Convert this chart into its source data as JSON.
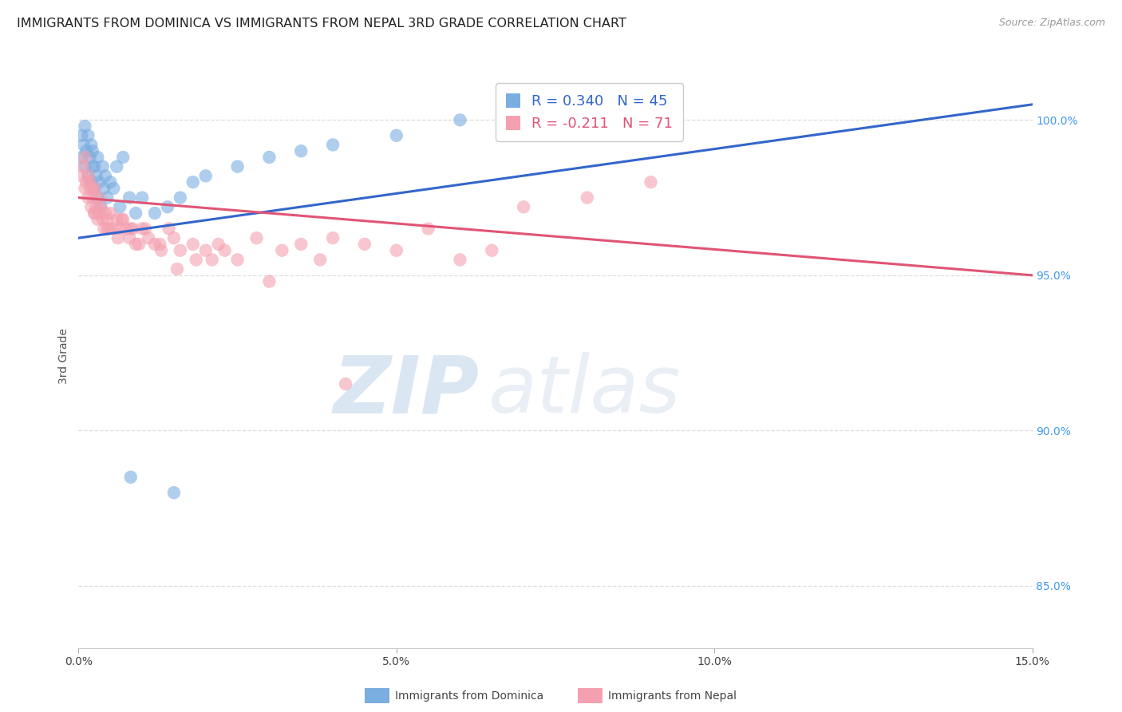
{
  "title": "IMMIGRANTS FROM DOMINICA VS IMMIGRANTS FROM NEPAL 3RD GRADE CORRELATION CHART",
  "source": "Source: ZipAtlas.com",
  "ylabel": "3rd Grade",
  "xlim": [
    0.0,
    15.0
  ],
  "ylim": [
    83.0,
    101.8
  ],
  "xticks": [
    0.0,
    5.0,
    10.0,
    15.0
  ],
  "xtick_labels": [
    "0.0%",
    "5.0%",
    "10.0%",
    "15.0%"
  ],
  "ytick_labels_right": [
    "85.0%",
    "90.0%",
    "95.0%",
    "100.0%"
  ],
  "yticks_right": [
    85.0,
    90.0,
    95.0,
    100.0
  ],
  "grid_color": "#dddddd",
  "background_color": "#ffffff",
  "dominica_color": "#7aade0",
  "nepal_color": "#f4a0b0",
  "dominica_line_color": "#3366cc",
  "nepal_line_color": "#e05575",
  "legend_R_dominica": "0.340",
  "legend_N_dominica": "45",
  "legend_R_nepal": "-0.211",
  "legend_N_nepal": "71",
  "watermark_zip": "ZIP",
  "watermark_atlas": "atlas",
  "dominica_x": [
    0.05,
    0.05,
    0.08,
    0.1,
    0.1,
    0.12,
    0.15,
    0.15,
    0.18,
    0.2,
    0.2,
    0.22,
    0.22,
    0.25,
    0.25,
    0.28,
    0.3,
    0.3,
    0.32,
    0.35,
    0.38,
    0.4,
    0.42,
    0.45,
    0.5,
    0.55,
    0.6,
    0.65,
    0.7,
    0.8,
    0.9,
    1.0,
    1.2,
    1.4,
    1.6,
    1.8,
    2.0,
    2.5,
    3.0,
    3.5,
    4.0,
    5.0,
    6.0,
    0.82,
    1.5
  ],
  "dominica_y": [
    98.8,
    99.5,
    99.2,
    98.5,
    99.8,
    99.0,
    98.2,
    99.5,
    98.8,
    98.0,
    99.2,
    98.5,
    99.0,
    97.8,
    98.5,
    98.2,
    97.5,
    98.8,
    98.0,
    97.2,
    98.5,
    97.8,
    98.2,
    97.5,
    98.0,
    97.8,
    98.5,
    97.2,
    98.8,
    97.5,
    97.0,
    97.5,
    97.0,
    97.2,
    97.5,
    98.0,
    98.2,
    98.5,
    98.8,
    99.0,
    99.2,
    99.5,
    100.0,
    88.5,
    88.0
  ],
  "nepal_x": [
    0.05,
    0.07,
    0.1,
    0.1,
    0.12,
    0.15,
    0.15,
    0.18,
    0.18,
    0.2,
    0.22,
    0.22,
    0.25,
    0.25,
    0.28,
    0.3,
    0.32,
    0.32,
    0.35,
    0.38,
    0.4,
    0.42,
    0.45,
    0.48,
    0.5,
    0.55,
    0.6,
    0.65,
    0.7,
    0.75,
    0.8,
    0.85,
    0.9,
    1.0,
    1.1,
    1.2,
    1.3,
    1.5,
    1.6,
    1.8,
    2.0,
    2.2,
    2.5,
    2.8,
    3.2,
    3.5,
    3.8,
    4.0,
    4.5,
    5.0,
    5.5,
    6.0,
    6.5,
    7.0,
    8.0,
    9.0,
    1.05,
    1.55,
    0.68,
    0.82,
    1.28,
    2.1,
    0.45,
    0.95,
    1.85,
    3.0,
    0.25,
    0.62,
    1.42,
    2.3,
    4.2
  ],
  "nepal_y": [
    98.2,
    98.5,
    98.8,
    97.8,
    98.0,
    97.5,
    98.2,
    97.8,
    98.0,
    97.2,
    97.5,
    97.8,
    97.0,
    97.8,
    97.2,
    96.8,
    97.5,
    97.0,
    97.2,
    96.8,
    96.5,
    97.0,
    96.8,
    96.5,
    97.0,
    96.5,
    96.8,
    96.5,
    96.8,
    96.5,
    96.2,
    96.5,
    96.0,
    96.5,
    96.2,
    96.0,
    95.8,
    96.2,
    95.8,
    96.0,
    95.8,
    96.0,
    95.5,
    96.2,
    95.8,
    96.0,
    95.5,
    96.2,
    96.0,
    95.8,
    96.5,
    95.5,
    95.8,
    97.2,
    97.5,
    98.0,
    96.5,
    95.2,
    96.8,
    96.5,
    96.0,
    95.5,
    96.5,
    96.0,
    95.5,
    94.8,
    97.0,
    96.2,
    96.5,
    95.8,
    91.5
  ],
  "title_fontsize": 11.5,
  "axis_label_fontsize": 10,
  "tick_fontsize": 10,
  "legend_fontsize": 13,
  "source_fontsize": 9
}
